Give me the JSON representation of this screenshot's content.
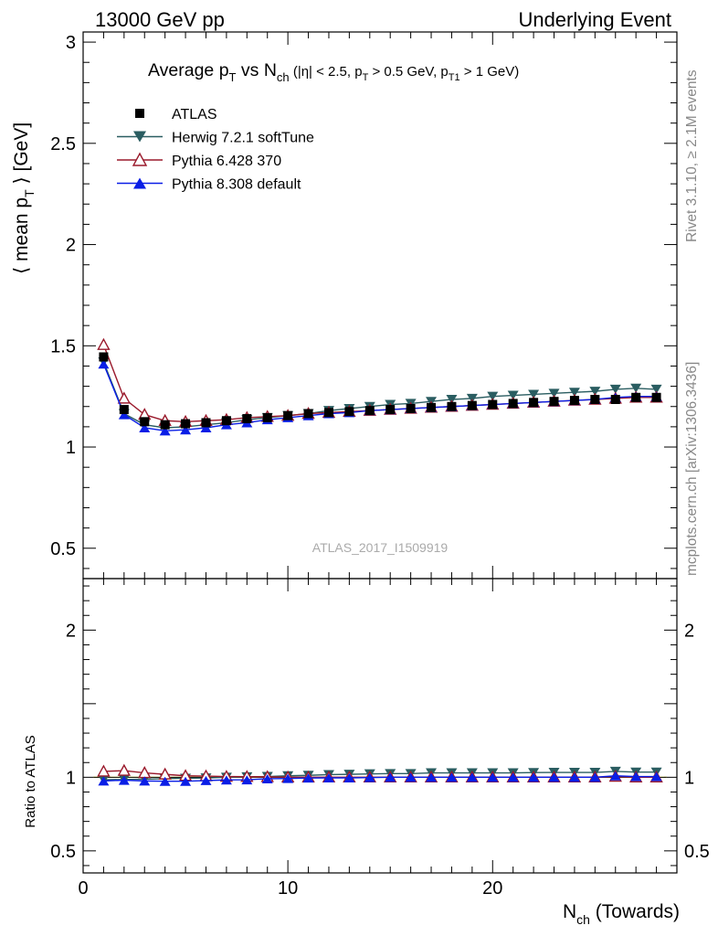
{
  "header": {
    "left": "13000 GeV pp",
    "right": "Underlying Event"
  },
  "side_labels": {
    "rivet": "Rivet 3.1.10, ≥ 2.1M events",
    "mcplots": "mcplots.cern.ch [arXiv:1306.3436]"
  },
  "chart_data": [
    {
      "type": "line",
      "title": "Average p_T vs N_ch (|η| < 2.5, p_T > 0.5 GeV, p_T1 > 1 GeV)",
      "watermark": "ATLAS_2017_I1509919",
      "ylabel": "⟨ mean p_T ⟩ [GeV]",
      "xlabel": "N_ch (Towards)",
      "xlim": [
        0,
        29
      ],
      "ylim": [
        0.35,
        3.05
      ],
      "x_ticks": [
        0,
        10,
        20
      ],
      "y_ticks": [
        0.5,
        1,
        1.5,
        2,
        2.5,
        3
      ],
      "legend_position": "top-left",
      "x": [
        1,
        2,
        3,
        4,
        5,
        6,
        7,
        8,
        9,
        10,
        11,
        12,
        13,
        14,
        15,
        16,
        17,
        18,
        19,
        20,
        21,
        22,
        23,
        24,
        25,
        26,
        27,
        28
      ],
      "series": [
        {
          "name": "ATLAS",
          "color": "#000000",
          "marker": "square",
          "values": [
            1.445,
            1.185,
            1.125,
            1.11,
            1.115,
            1.12,
            1.13,
            1.14,
            1.145,
            1.155,
            1.165,
            1.17,
            1.175,
            1.18,
            1.185,
            1.19,
            1.195,
            1.2,
            1.205,
            1.21,
            1.215,
            1.22,
            1.225,
            1.23,
            1.235,
            1.235,
            1.245,
            1.245
          ]
        },
        {
          "name": "Herwig 7.2.1 softTune",
          "color": "#2a5d61",
          "marker": "triangle-down",
          "values": [
            1.42,
            1.165,
            1.11,
            1.095,
            1.1,
            1.11,
            1.12,
            1.135,
            1.145,
            1.155,
            1.165,
            1.18,
            1.19,
            1.2,
            1.21,
            1.215,
            1.225,
            1.235,
            1.24,
            1.25,
            1.255,
            1.26,
            1.265,
            1.27,
            1.275,
            1.285,
            1.29,
            1.285
          ]
        },
        {
          "name": "Pythia 6.428 370",
          "color": "#9a1a2c",
          "marker": "triangle-up-open",
          "values": [
            1.505,
            1.24,
            1.16,
            1.13,
            1.125,
            1.13,
            1.135,
            1.145,
            1.15,
            1.155,
            1.165,
            1.17,
            1.175,
            1.18,
            1.185,
            1.19,
            1.195,
            1.2,
            1.205,
            1.21,
            1.215,
            1.22,
            1.225,
            1.23,
            1.235,
            1.24,
            1.245,
            1.245
          ]
        },
        {
          "name": "Pythia 8.308 default",
          "color": "#0a1ee6",
          "marker": "triangle-up",
          "values": [
            1.41,
            1.16,
            1.095,
            1.08,
            1.085,
            1.095,
            1.11,
            1.12,
            1.135,
            1.145,
            1.155,
            1.165,
            1.17,
            1.18,
            1.185,
            1.19,
            1.195,
            1.2,
            1.205,
            1.21,
            1.215,
            1.22,
            1.225,
            1.23,
            1.235,
            1.245,
            1.25,
            1.25
          ]
        }
      ]
    },
    {
      "type": "line",
      "ylabel": "Ratio to ATLAS",
      "xlabel": "N_ch (Towards)",
      "xlim": [
        0,
        29
      ],
      "ylim": [
        0.35,
        2.35
      ],
      "x_ticks": [
        0,
        10,
        20
      ],
      "y_ticks": [
        0.5,
        1,
        2
      ],
      "band_color": "#ffff66",
      "x": [
        1,
        2,
        3,
        4,
        5,
        6,
        7,
        8,
        9,
        10,
        11,
        12,
        13,
        14,
        15,
        16,
        17,
        18,
        19,
        20,
        21,
        22,
        23,
        24,
        25,
        26,
        27,
        28
      ],
      "series": [
        {
          "name": "Herwig 7.2.1 softTune",
          "color": "#2a5d61",
          "marker": "triangle-down",
          "values": [
            0.983,
            0.985,
            0.987,
            0.99,
            0.993,
            0.995,
            1.0,
            1.003,
            1.005,
            1.01,
            1.013,
            1.018,
            1.02,
            1.023,
            1.025,
            1.025,
            1.03,
            1.03,
            1.03,
            1.03,
            1.03,
            1.032,
            1.033,
            1.033,
            1.033,
            1.04,
            1.035,
            1.035
          ]
        },
        {
          "name": "Pythia 6.428 370",
          "color": "#9a1a2c",
          "marker": "triangle-up-open",
          "values": [
            1.04,
            1.045,
            1.03,
            1.02,
            1.01,
            1.008,
            1.005,
            1.004,
            1.003,
            1.0,
            1.0,
            1.0,
            1.0,
            1.0,
            1.0,
            1.0,
            1.0,
            1.0,
            1.0,
            1.0,
            1.0,
            1.0,
            1.0,
            1.0,
            1.0,
            1.005,
            1.0,
            1.0
          ]
        },
        {
          "name": "Pythia 8.308 default",
          "color": "#0a1ee6",
          "marker": "triangle-up",
          "values": [
            0.975,
            0.98,
            0.975,
            0.973,
            0.973,
            0.978,
            0.982,
            0.983,
            0.99,
            0.992,
            0.995,
            0.996,
            0.996,
            0.998,
            1.0,
            1.0,
            1.0,
            1.0,
            1.0,
            1.0,
            1.0,
            1.0,
            1.0,
            1.0,
            1.0,
            1.01,
            1.005,
            1.005
          ]
        }
      ]
    }
  ]
}
